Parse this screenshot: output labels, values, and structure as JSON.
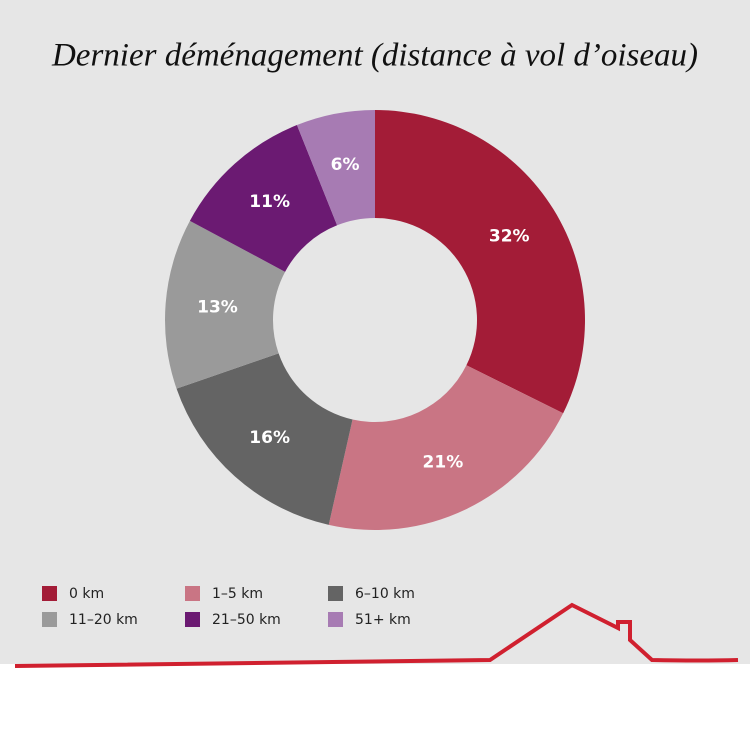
{
  "chart_data": {
    "type": "donut",
    "title": "Dernier déménagement (distance à vol d’oiseau)",
    "categories": [
      "0 km",
      "1–5 km",
      "6–10 km",
      "11–20 km",
      "21–50 km",
      "51+ km"
    ],
    "values": [
      32,
      21,
      16,
      13,
      11,
      6
    ],
    "value_labels": [
      "32%",
      "21%",
      "16%",
      "13%",
      "11%",
      "6%"
    ],
    "colors": [
      "#a31c37",
      "#c97584",
      "#646464",
      "#9a9a9a",
      "#6b1a72",
      "#a77bb3"
    ],
    "legend": "bottom"
  }
}
